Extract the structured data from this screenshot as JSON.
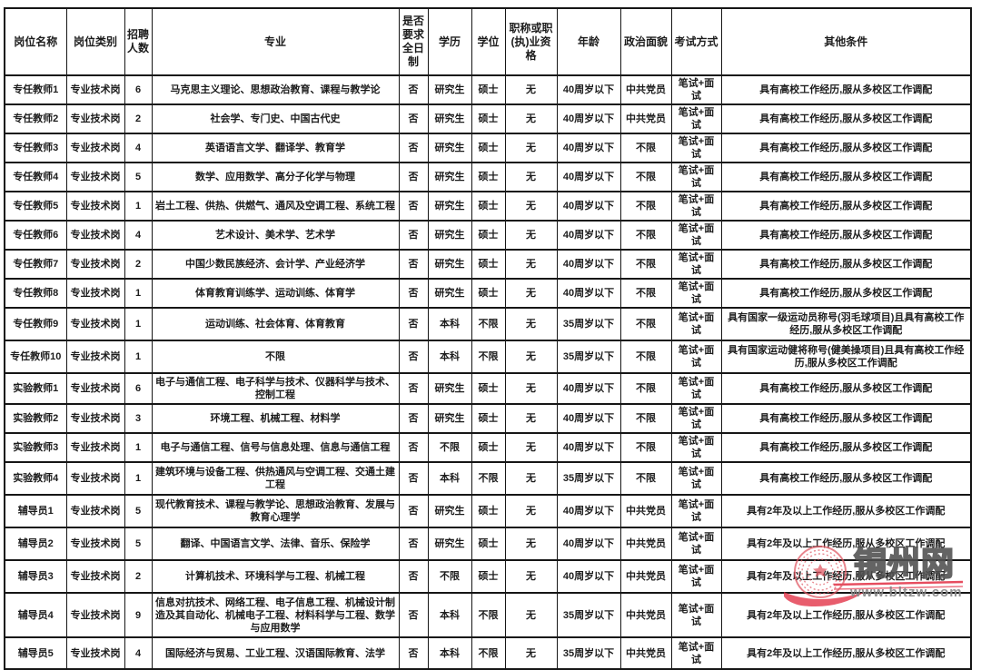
{
  "table": {
    "headers": [
      "岗位名称",
      "岗位类别",
      "招聘人数",
      "专业",
      "是否要求全日制",
      "学历",
      "学位",
      "职称或职(执)业资格",
      "年龄",
      "政治面貌",
      "考试方式",
      "其他条件"
    ],
    "rows": [
      [
        "专任教师1",
        "专业技术岗",
        "6",
        "马克思主义理论、思想政治教育、课程与教学论",
        "否",
        "研究生",
        "硕士",
        "无",
        "40周岁以下",
        "中共党员",
        "笔试+面试",
        "具有高校工作经历,服从多校区工作调配"
      ],
      [
        "专任教师2",
        "专业技术岗",
        "2",
        "社会学、专门史、中国古代史",
        "否",
        "研究生",
        "硕士",
        "无",
        "40周岁以下",
        "中共党员",
        "笔试+面试",
        "具有高校工作经历,服从多校区工作调配"
      ],
      [
        "专任教师3",
        "专业技术岗",
        "4",
        "英语语言文学、翻译学、教育学",
        "否",
        "研究生",
        "硕士",
        "无",
        "40周岁以下",
        "不限",
        "笔试+面试",
        "具有高校工作经历,服从多校区工作调配"
      ],
      [
        "专任教师4",
        "专业技术岗",
        "5",
        "数学、应用数学、高分子化学与物理",
        "否",
        "研究生",
        "硕士",
        "无",
        "40周岁以下",
        "不限",
        "笔试+面试",
        "具有高校工作经历,服从多校区工作调配"
      ],
      [
        "专任教师5",
        "专业技术岗",
        "1",
        "岩土工程、供热、供燃气、通风及空调工程、系统工程",
        "否",
        "研究生",
        "硕士",
        "无",
        "40周岁以下",
        "不限",
        "笔试+面试",
        "具有高校工作经历,服从多校区工作调配"
      ],
      [
        "专任教师6",
        "专业技术岗",
        "4",
        "艺术设计、美术学、艺术学",
        "否",
        "研究生",
        "硕士",
        "无",
        "40周岁以下",
        "不限",
        "笔试+面试",
        "具有高校工作经历,服从多校区工作调配"
      ],
      [
        "专任教师7",
        "专业技术岗",
        "2",
        "中国少数民族经济、会计学、产业经济学",
        "否",
        "研究生",
        "硕士",
        "无",
        "40周岁以下",
        "不限",
        "笔试+面试",
        "具有高校工作经历,服从多校区工作调配"
      ],
      [
        "专任教师8",
        "专业技术岗",
        "1",
        "体育教育训练学、运动训练、体育学",
        "否",
        "研究生",
        "硕士",
        "无",
        "40周岁以下",
        "不限",
        "笔试+面试",
        "具有高校工作经历,服从多校区工作调配"
      ],
      [
        "专任教师9",
        "专业技术岗",
        "1",
        "运动训练、社会体育、体育教育",
        "否",
        "本科",
        "不限",
        "无",
        "35周岁以下",
        "不限",
        "笔试+面试",
        "具有国家一级运动员称号(羽毛球项目)且具有高校工作经历,服从多校区工作调配"
      ],
      [
        "专任教师10",
        "专业技术岗",
        "1",
        "不限",
        "否",
        "本科",
        "不限",
        "无",
        "35周岁以下",
        "不限",
        "笔试+面试",
        "具有国家运动健将称号(健美操项目)且具有高校工作经历,服从多校区工作调配"
      ],
      [
        "实验教师1",
        "专业技术岗",
        "6",
        "电子与通信工程、电子科学与技术、仪器科学与技术、控制工程",
        "否",
        "研究生",
        "硕士",
        "无",
        "40周岁以下",
        "不限",
        "笔试+面试",
        "具有高校工作经历,服从多校区工作调配"
      ],
      [
        "实验教师2",
        "专业技术岗",
        "3",
        "环境工程、机械工程、材料学",
        "否",
        "研究生",
        "硕士",
        "无",
        "40周岁以下",
        "不限",
        "笔试+面试",
        "具有高校工作经历,服从多校区工作调配"
      ],
      [
        "实验教师3",
        "专业技术岗",
        "1",
        "电子与通信工程、信号与信息处理、信息与通信工程",
        "否",
        "不限",
        "硕士",
        "无",
        "40周岁以下",
        "不限",
        "笔试+面试",
        "具有高校工作经历,服从多校区工作调配"
      ],
      [
        "实验教师4",
        "专业技术岗",
        "1",
        "建筑环境与设备工程、供热通风与空调工程、交通土建工程",
        "否",
        "本科",
        "不限",
        "无",
        "35周岁以下",
        "不限",
        "笔试+面试",
        "具有高校工作经历,服从多校区工作调配"
      ],
      [
        "辅导员1",
        "专业技术岗",
        "5",
        "现代教育技术、课程与教学论、思想政治教育、发展与教育心理学",
        "否",
        "研究生",
        "硕士",
        "无",
        "40周岁以下",
        "中共党员",
        "笔试+面试",
        "具有2年及以上工作经历,服从多校区工作调配"
      ],
      [
        "辅导员2",
        "专业技术岗",
        "5",
        "翻译、中国语言文学、法律、音乐、保险学",
        "否",
        "研究生",
        "硕士",
        "无",
        "40周岁以下",
        "中共党员",
        "笔试+面试",
        "具有2年及以上工作经历,服从多校区工作调配"
      ],
      [
        "辅导员3",
        "专业技术岗",
        "2",
        "计算机技术、环境科学与工程、机械工程",
        "否",
        "不限",
        "硕士",
        "无",
        "40周岁以下",
        "中共党员",
        "笔试+面试",
        "具有2年及以上工作经历,服从多校区工作调配"
      ],
      [
        "辅导员4",
        "专业技术岗",
        "9",
        "信息对抗技术、网络工程、电子信息工程、机械设计制造及其自动化、机械电子工程、材料科学与工程、数学与应用数学",
        "否",
        "本科",
        "不限",
        "无",
        "35周岁以下",
        "中共党员",
        "笔试+面试",
        "具有2年及以上工作经历,服从多校区工作调配"
      ],
      [
        "辅导员5",
        "专业技术岗",
        "4",
        "国际经济与贸易、工业工程、汉语国际教育、法学",
        "否",
        "本科",
        "不限",
        "无",
        "35周岁以下",
        "中共党员",
        "笔试+面试",
        "具有2年及以上工作经历,服从多校区工作调配"
      ]
    ]
  },
  "watermark": {
    "site_name": "铜州网",
    "site_url": "www.bltzw.com",
    "seal_color": "#e05560",
    "ribbon_color": "#e22f44",
    "name_color": "#4f4f4f",
    "url_color": "#8a8a8a"
  }
}
